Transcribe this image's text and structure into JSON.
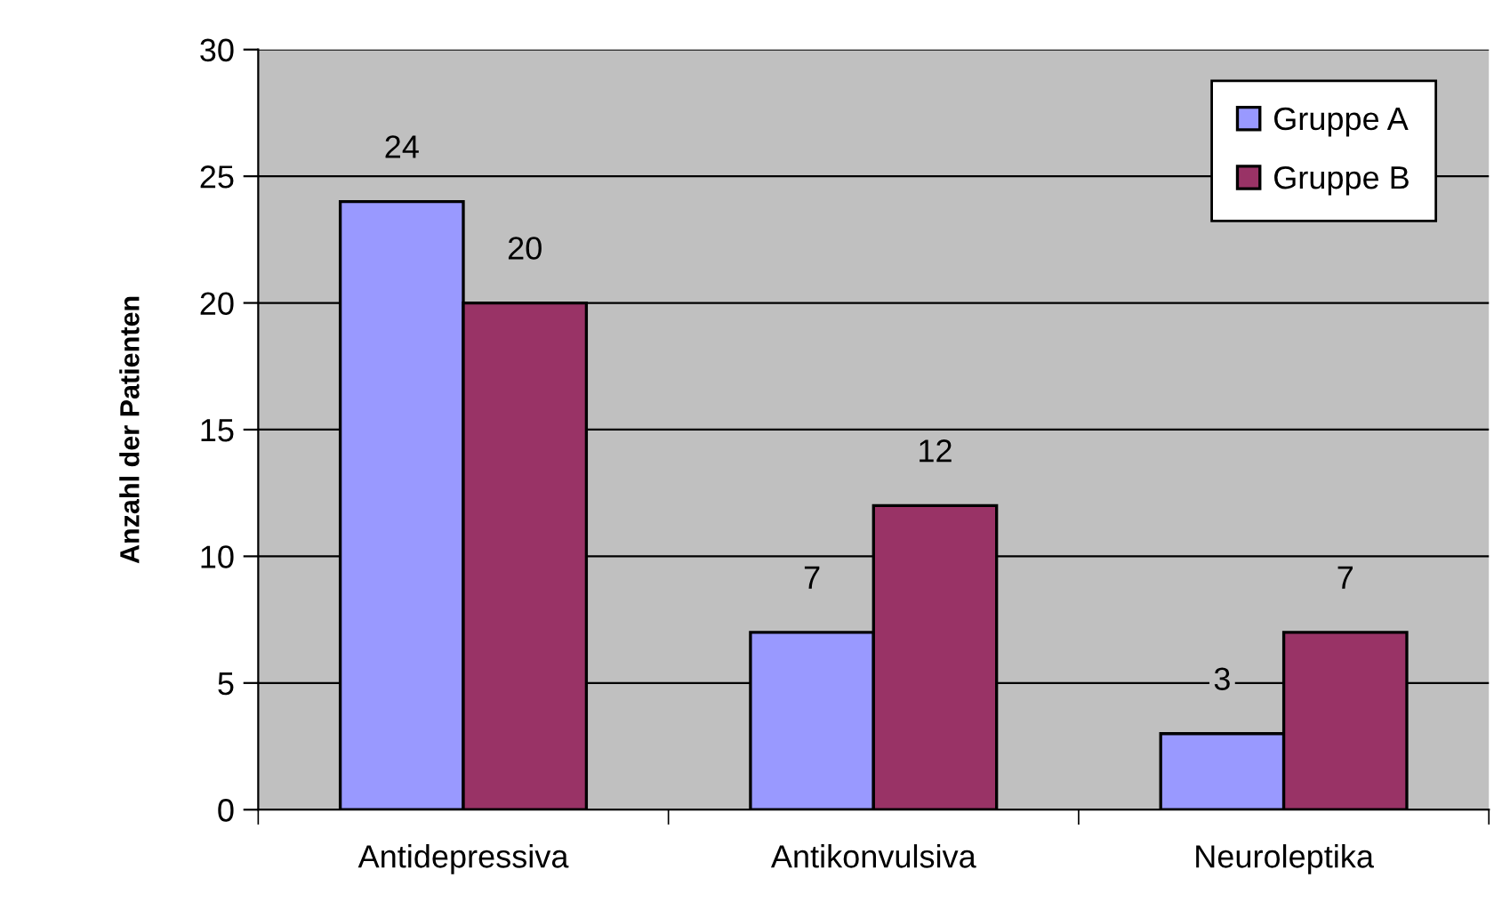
{
  "chart_data": {
    "type": "bar",
    "ylabel": "Anzahl der Patienten",
    "categories": [
      "Antidepressiva",
      "Antikonvulsiva",
      "Neuroleptika"
    ],
    "series": [
      {
        "name": "Gruppe A",
        "color": "#9999ff",
        "values": [
          24,
          7,
          3
        ]
      },
      {
        "name": "Gruppe B",
        "color": "#993366",
        "values": [
          20,
          12,
          7
        ]
      }
    ],
    "ylim": [
      0,
      30
    ],
    "yticks": [
      0,
      5,
      10,
      15,
      20,
      25,
      30
    ],
    "grid": "y",
    "legend": "top right",
    "data_labels": true
  }
}
